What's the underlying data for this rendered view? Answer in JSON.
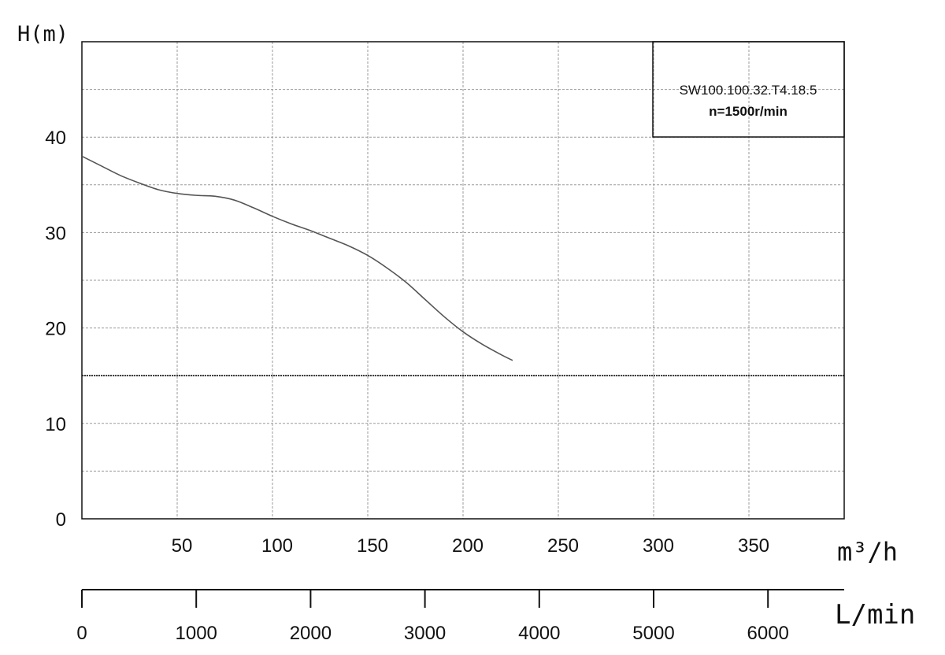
{
  "chart_data": {
    "type": "line",
    "ylabel": "H(m)",
    "xlabel": "m³/h",
    "xlabel_secondary": "L/min",
    "xlim": [
      0,
      400
    ],
    "ylim": [
      0,
      50
    ],
    "x_ticks": [
      50,
      100,
      150,
      200,
      250,
      300,
      350
    ],
    "y_ticks": [
      0,
      10,
      20,
      30,
      40
    ],
    "secondary_x_ticks": [
      0,
      1000,
      2000,
      3000,
      4000,
      5000,
      6000
    ],
    "grid": true,
    "reference_line_y": 15,
    "legend": {
      "model": "SW100.100.32.T4.18.5",
      "speed": "n=1500r/min",
      "placement": "top-right"
    },
    "series": [
      {
        "x": [
          0,
          10,
          20,
          30,
          40,
          50,
          60,
          70,
          80,
          90,
          100,
          110,
          120,
          130,
          140,
          150,
          160,
          170,
          180,
          190,
          200,
          210,
          220,
          226
        ],
        "y": [
          38.0,
          37.0,
          36.0,
          35.2,
          34.5,
          34.1,
          33.9,
          33.8,
          33.4,
          32.6,
          31.7,
          30.9,
          30.2,
          29.4,
          28.6,
          27.6,
          26.3,
          24.8,
          23.0,
          21.2,
          19.6,
          18.3,
          17.2,
          16.6
        ]
      }
    ]
  }
}
